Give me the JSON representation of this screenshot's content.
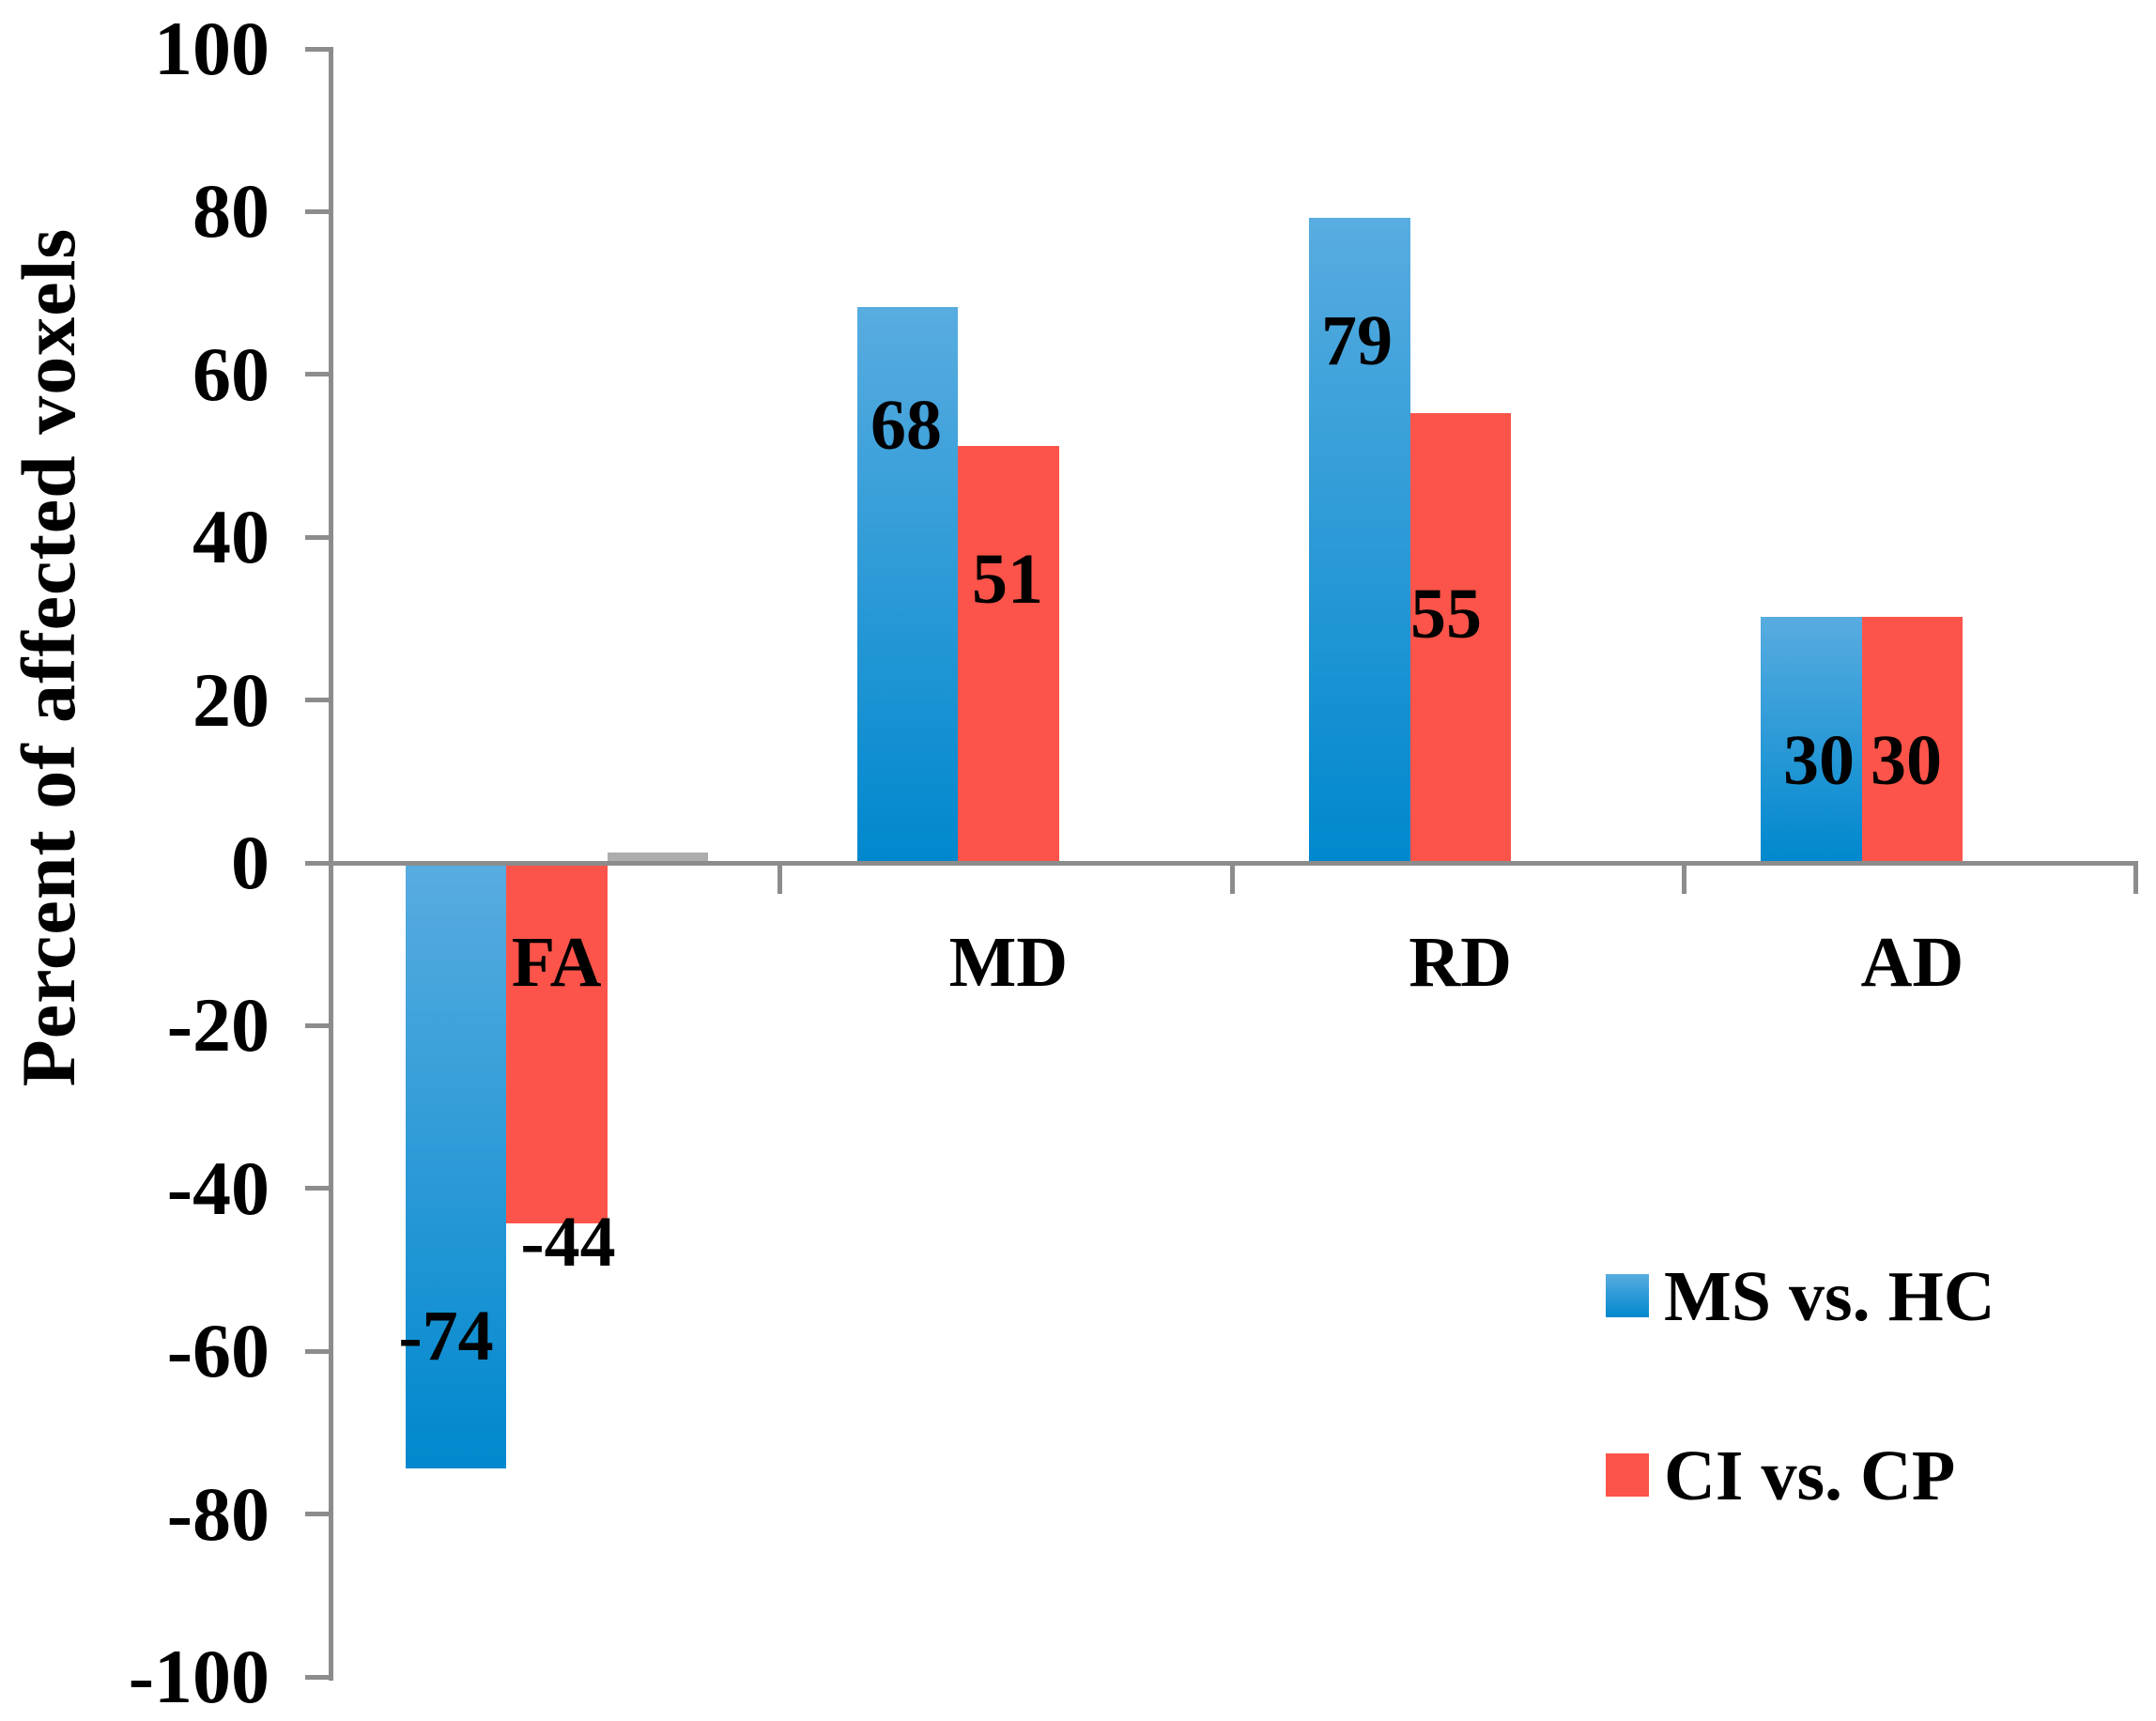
{
  "chart_data": {
    "type": "bar",
    "title": "",
    "xlabel": "",
    "ylabel": "Percent of affected voxels",
    "categories": [
      "FA",
      "MD",
      "RD",
      "AD"
    ],
    "series": [
      {
        "name": "MS vs. HC",
        "values": [
          -74,
          68,
          79,
          30
        ],
        "color": "#0088ce",
        "gradient_top": "#58ace0",
        "gradient_bottom": "#0088ce",
        "in_legend": true
      },
      {
        "name": "CI vs. CP",
        "values": [
          -44,
          51,
          55,
          30
        ],
        "color": "#fc544a",
        "in_legend": true
      },
      {
        "name": "",
        "values": [
          1,
          0,
          0,
          0
        ],
        "color": "#adadad",
        "in_legend": false
      }
    ],
    "data_labels_shown": [
      "-74",
      "-44",
      "68",
      "51",
      "79",
      "55",
      "30",
      "30"
    ],
    "ylim": [
      -100,
      100
    ],
    "ytick_step": 20,
    "yticks": [
      100,
      80,
      60,
      40,
      20,
      0,
      -20,
      -40,
      -60,
      -80,
      -100
    ],
    "grid": false,
    "legend_position": "lower-right",
    "axis_color": "#8c8c8c",
    "text_color": "#000000",
    "background_color": "#ffffff"
  }
}
